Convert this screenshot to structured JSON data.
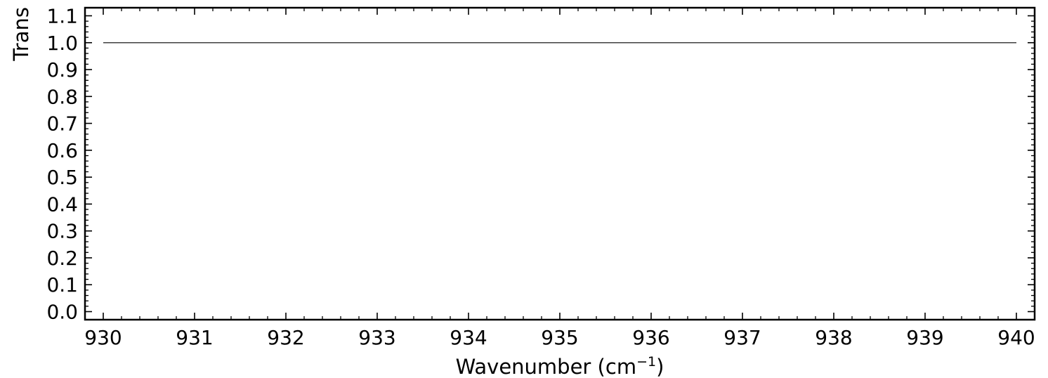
{
  "chart_data": {
    "type": "line",
    "title": "",
    "xlabel": "Wavenumber (cm",
    "xlabel_superscript": "−1",
    "xlabel_suffix": ")",
    "ylabel": "Trans",
    "xlim": [
      929.8,
      940.2
    ],
    "ylim": [
      -0.03,
      1.13
    ],
    "x_ticks": [
      930,
      931,
      932,
      933,
      934,
      935,
      936,
      937,
      938,
      939,
      940
    ],
    "x_tick_labels": [
      "930",
      "931",
      "932",
      "933",
      "934",
      "935",
      "936",
      "937",
      "938",
      "939",
      "940"
    ],
    "x_minor_step": 0.2,
    "y_ticks": [
      0.0,
      0.1,
      0.2,
      0.3,
      0.4,
      0.5,
      0.6,
      0.7,
      0.8,
      0.9,
      1.0,
      1.1
    ],
    "y_tick_labels": [
      "0.0",
      "0.1",
      "0.2",
      "0.3",
      "0.4",
      "0.5",
      "0.6",
      "0.7",
      "0.8",
      "0.9",
      "1.0",
      "1.1"
    ],
    "y_minor_step": 0.02,
    "grid": false,
    "tick_direction": "in",
    "line_color": "#000000",
    "series": [
      {
        "x": [
          930,
          931,
          932,
          933,
          934,
          935,
          936,
          937,
          938,
          939,
          940
        ],
        "y": [
          1.0,
          1.0,
          1.0,
          1.0,
          1.0,
          1.0,
          1.0,
          1.0,
          1.0,
          1.0,
          1.0
        ]
      }
    ]
  }
}
